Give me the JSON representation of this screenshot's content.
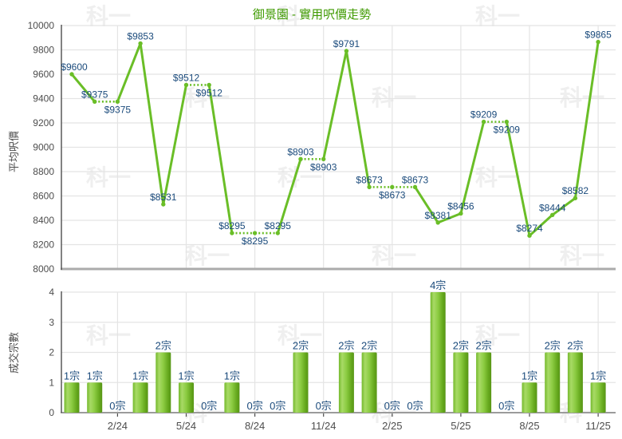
{
  "title": "御景園 - 實用呎價走勢",
  "watermark_text": "科一",
  "colors": {
    "title": "#3f9a00",
    "line": "#6abe27",
    "data_label": "#1b4b7c",
    "axis_text": "#4d4d4d",
    "grid": "#e4e4e4",
    "baseline": "#ababab",
    "axis_line": "#4d4d4d",
    "bar_gradient": [
      "#74b92c",
      "#a8da66",
      "#8ccc42",
      "#65a81d",
      "#579516"
    ],
    "watermark": "#efefef"
  },
  "x_axis": {
    "tick_labels": [
      "2/24",
      "5/24",
      "8/24",
      "11/24",
      "2/25",
      "5/25",
      "8/25",
      "11/25"
    ],
    "tick_indices": [
      2,
      5,
      8,
      11,
      14,
      17,
      20,
      23
    ],
    "points_per_tick": 3
  },
  "chart_data": [
    {
      "type": "line",
      "name": "平均呎價",
      "ylabel": "平均呎價",
      "ylim": [
        8000,
        10000
      ],
      "ytick_step": 200,
      "yticks": [
        8000,
        8200,
        8400,
        8600,
        8800,
        9000,
        9200,
        9400,
        9600,
        9800,
        10000
      ],
      "values": [
        9600,
        9375,
        9375,
        9853,
        8531,
        9512,
        9512,
        8295,
        8295,
        8295,
        8903,
        8903,
        9791,
        8673,
        8673,
        8673,
        8381,
        8456,
        9209,
        9209,
        8274,
        8444,
        8582,
        9865
      ],
      "point_labels": [
        "$9600",
        "$9375",
        "$9375",
        "$9853",
        "$8531",
        "$9512",
        "$9512",
        "$8295",
        "$8295",
        "$8295",
        "$8903",
        "$8903",
        "$9791",
        "$8673",
        "$8673",
        "$8673",
        "$8381",
        "$8456",
        "$9209",
        "$9209",
        "$8274",
        "$8444",
        "$8582",
        "$9865"
      ],
      "label_prefix": "$",
      "flat_segment_style": "dotted",
      "grid": true,
      "legend": "none"
    },
    {
      "type": "bar",
      "name": "成交宗數",
      "ylabel": "成交宗數",
      "ylim": [
        0,
        4
      ],
      "ytick_step": 1,
      "yticks": [
        0,
        1,
        2,
        3,
        4
      ],
      "values": [
        1,
        1,
        0,
        1,
        2,
        1,
        0,
        1,
        0,
        0,
        2,
        0,
        2,
        2,
        0,
        0,
        4,
        2,
        2,
        0,
        1,
        2,
        2,
        1
      ],
      "bar_labels": [
        "1宗",
        "1宗",
        "0宗",
        "1宗",
        "2宗",
        "1宗",
        "0宗",
        "1宗",
        "0宗",
        "0宗",
        "2宗",
        "0宗",
        "2宗",
        "2宗",
        "0宗",
        "0宗",
        "4宗",
        "2宗",
        "2宗",
        "0宗",
        "1宗",
        "2宗",
        "2宗",
        "1宗"
      ],
      "label_suffix": "宗",
      "grid": true,
      "legend": "none"
    }
  ]
}
